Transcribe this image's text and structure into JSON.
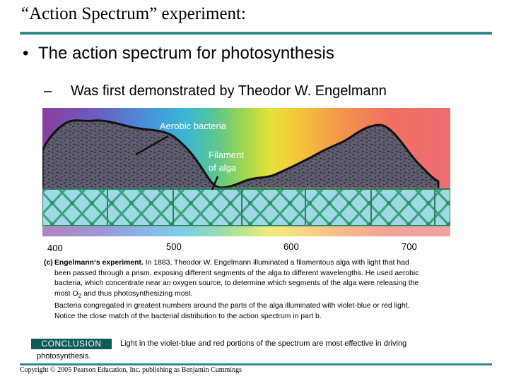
{
  "slide": {
    "title": "“Action Spectrum” experiment:",
    "bullet": "•",
    "bullet_text": "The action spectrum for photosynthesis",
    "sub_dash": "–",
    "sub_text": "Was first demonstrated by Theodor W. Engelmann"
  },
  "figure": {
    "label_bacteria": "Aerobic bacteria",
    "label_filament_1": "Filament",
    "label_filament_2": "of alga",
    "ticks": [
      "400",
      "500",
      "600",
      "700"
    ]
  },
  "caption": {
    "lead": "(c)",
    "title": "Engelmann‘s experiment.",
    "line1": " In 1883, Theodor W. Engelmann illuminated a filamentous alga with light that had",
    "line2": "been passed through a prism, exposing different segments of the alga to different wavelengths. He used aerobic",
    "line3": "bacteria, which concentrate near an oxygen source, to determine which segments of the alga were releasing the",
    "line4_a": "most O",
    "line4_sub": "2",
    "line4_b": " and thus photosynthesizing most.",
    "line5": "Bacteria congregated in greatest numbers around the parts of the alga illuminated with violet-blue or red light.",
    "line6": "Notice the close match of the bacterial distribution to the action spectrum in part b."
  },
  "conclusion": {
    "label": "CONCLUSION",
    "text_1": "Light in the violet-blue and red portions of the spectrum are most effective in driving",
    "text_2": "photosynthesis."
  },
  "footer": {
    "copyright": "Copyright © 2005 Pearson Education, Inc. publishing as Benjamin Cummings"
  },
  "colors": {
    "accent": "#2e8b86",
    "conclusion_bg": "#0e5c58"
  }
}
